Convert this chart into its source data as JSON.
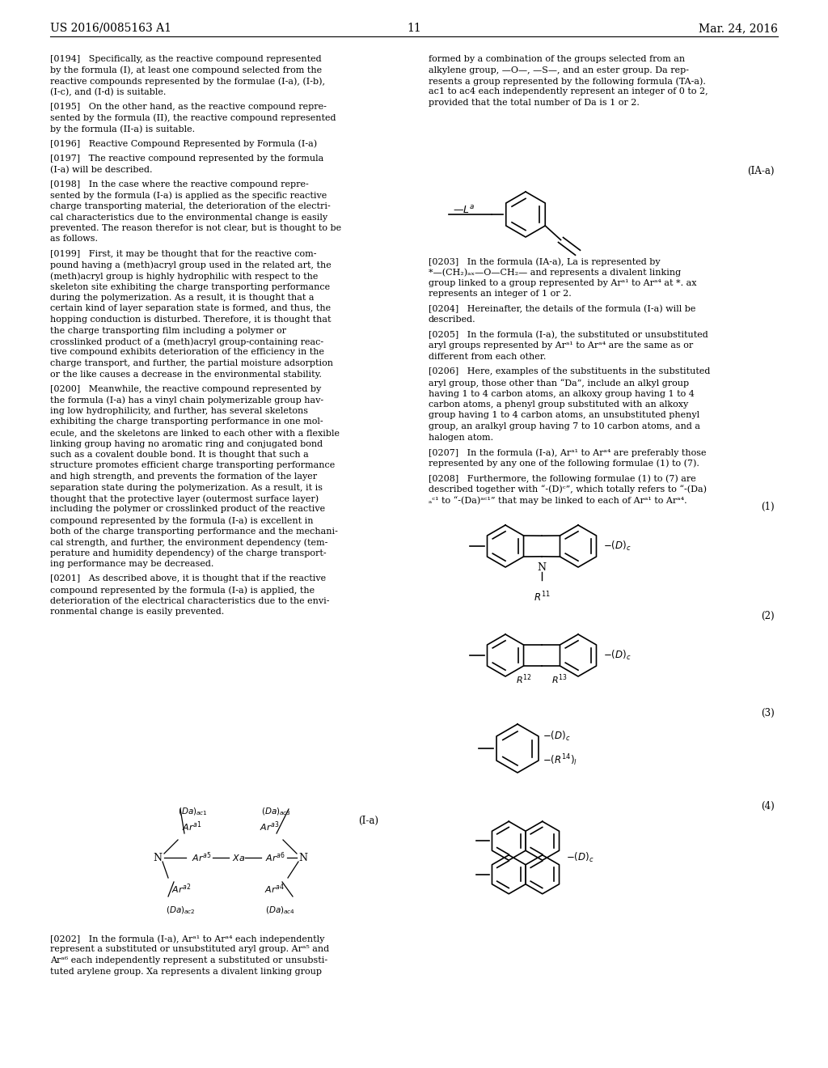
{
  "page_header_left": "US 2016/0085163 A1",
  "page_header_right": "Mar. 24, 2016",
  "page_number": "11",
  "bg_color": "#ffffff",
  "text_color": "#000000"
}
